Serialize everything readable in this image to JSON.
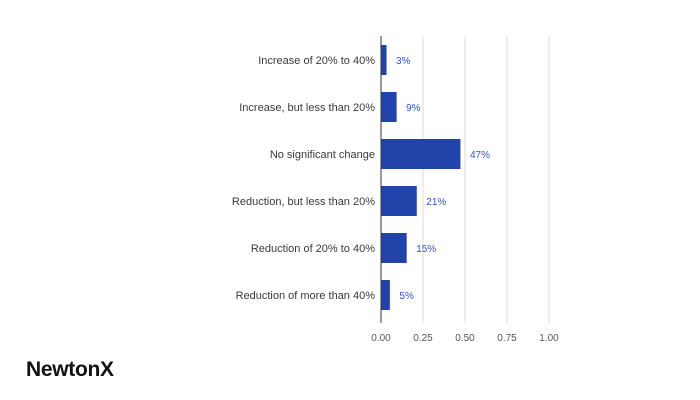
{
  "chart_data": {
    "type": "bar",
    "orientation": "horizontal",
    "categories": [
      "Increase of 20% to 40%",
      "Increase, but less than 20%",
      "No significant change",
      "Reduction, but less than 20%",
      "Reduction of 20% to 40%",
      "Reduction of more than 40%"
    ],
    "values": [
      0.03,
      0.09,
      0.47,
      0.21,
      0.15,
      0.05
    ],
    "data_labels": [
      "3%",
      "9%",
      "47%",
      "21%",
      "15%",
      "5%"
    ],
    "xlim": [
      0,
      1.0
    ],
    "xticks": [
      0,
      0.25,
      0.5,
      0.75,
      1.0
    ],
    "xtick_labels": [
      "0.00",
      "0.25",
      "0.50",
      "0.75",
      "1.00"
    ],
    "grid": true,
    "bar_color": "#2244aa",
    "label_color": "#3355cc"
  },
  "brand": {
    "logo_text": "NewtonX"
  }
}
